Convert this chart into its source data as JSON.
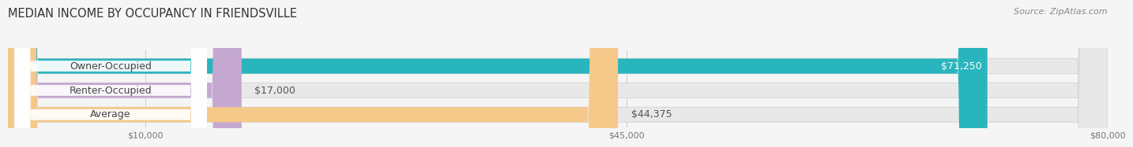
{
  "title": "MEDIAN INCOME BY OCCUPANCY IN FRIENDSVILLE",
  "source": "Source: ZipAtlas.com",
  "categories": [
    "Owner-Occupied",
    "Renter-Occupied",
    "Average"
  ],
  "values": [
    71250,
    17000,
    44375
  ],
  "value_labels": [
    "$71,250",
    "$17,000",
    "$44,375"
  ],
  "bar_colors": [
    "#29b5be",
    "#c4a8d0",
    "#f5c98a"
  ],
  "track_color": "#e8e8e8",
  "track_border_color": "#d8d8d8",
  "x_max": 80000,
  "x_ticks": [
    10000,
    45000,
    80000
  ],
  "x_tick_labels": [
    "$10,000",
    "$45,000",
    "$80,000"
  ],
  "title_fontsize": 10.5,
  "source_fontsize": 8,
  "bar_label_fontsize": 9,
  "value_label_fontsize": 9,
  "background_color": "#f5f5f5",
  "label_pill_color": "#ffffff",
  "value_inside_color": "#ffffff",
  "value_outside_color": "#555555"
}
